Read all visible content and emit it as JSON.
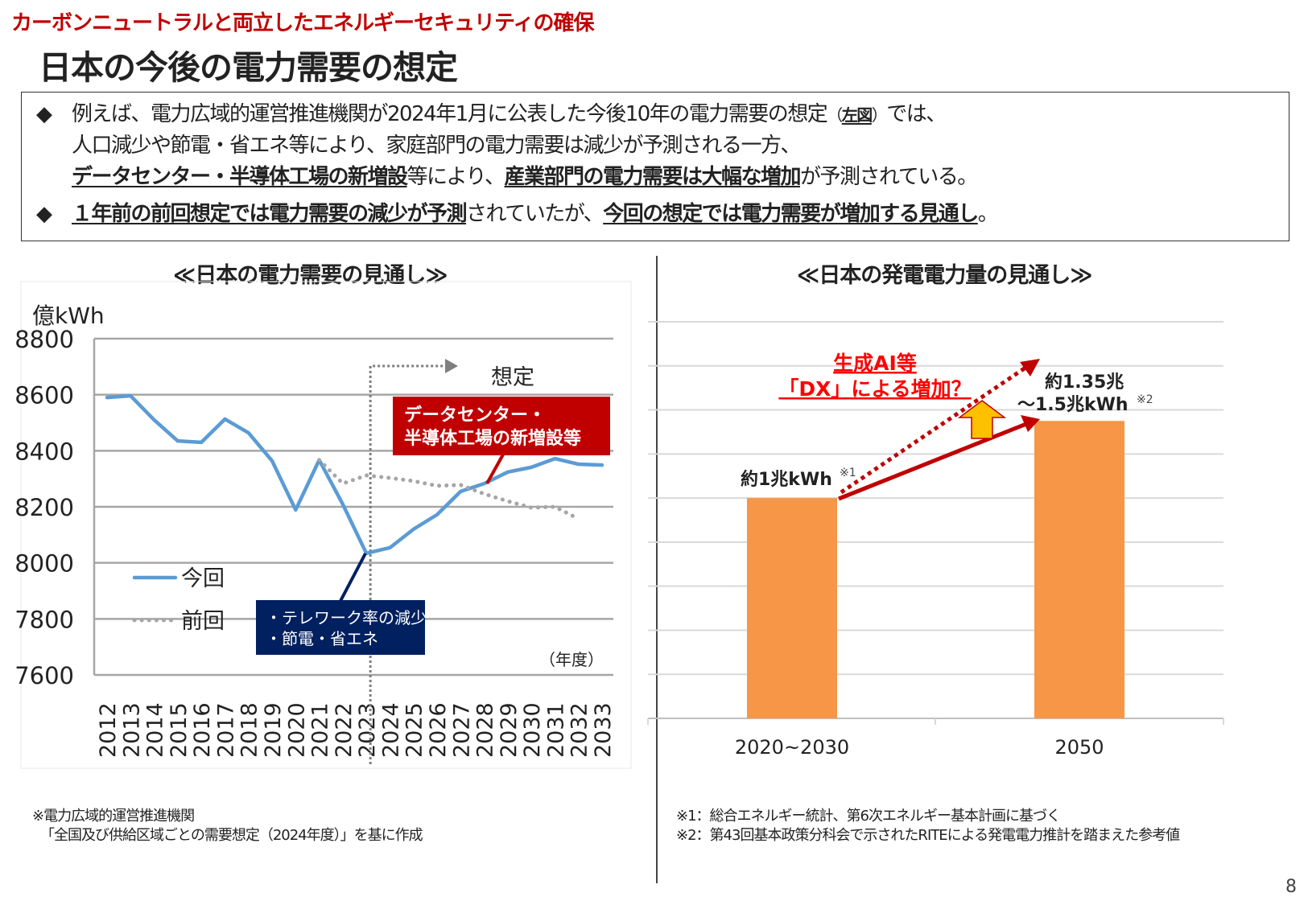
{
  "header": {
    "subtitle": "カーボンニュートラルと両立したエネルギーセキュリティの確保",
    "title": "日本の今後の電力需要の想定"
  },
  "summary": {
    "b1_l1": "例えば、電力広域的運営推進機関が2024年1月に公表した今後10年の電力需要の想定",
    "b1_l1_paren_open": "（",
    "b1_l1_ref": "左図",
    "b1_l1_paren_close": "）",
    "b1_l1_end": "では、",
    "b1_l2": "人口減少や節電・省エネ等により、家庭部門の電力需要は減少が予測される一方、",
    "b1_l3_a": "データセンター・半導体工場の新増設",
    "b1_l3_b": "等により、",
    "b1_l3_c": "産業部門の電力需要は大幅な増加",
    "b1_l3_d": "が予測されている。",
    "b2_a": "１年前の前回想定では電力需要の減少が予測",
    "b2_b": "されていたが、",
    "b2_c": "今回の想定では電力需要が増加する見通し",
    "b2_d": "。",
    "bullet": "◆"
  },
  "left_panel": {
    "title": "≪日本の電力需要の見通し≫",
    "note_l1": "※電力広域的運営推進機関",
    "note_l2": "「全国及び供給区域ごとの需要想定（2024年度）」を基に作成"
  },
  "right_panel": {
    "title": "≪日本の発電電力量の見通し≫",
    "note_l1": "※1：総合エネルギー統計、第6次エネルギー基本計画に基づく",
    "note_l2": "※2：第43回基本政策分科会で示されたRITEによる発電電力推計を踏まえた参考値"
  },
  "page_number": "8",
  "chart_data": [
    {
      "type": "line",
      "ylabel": "億kWh",
      "xlabel": "（年度）",
      "ylim": [
        7600,
        8800
      ],
      "yticks": [
        7600,
        7800,
        8000,
        8200,
        8400,
        8600,
        8800
      ],
      "grid": true,
      "x": [
        2012,
        2013,
        2014,
        2015,
        2016,
        2017,
        2018,
        2019,
        2020,
        2021,
        2022,
        2023,
        2024,
        2025,
        2026,
        2027,
        2028,
        2029,
        2030,
        2031,
        2032,
        2033
      ],
      "series": [
        {
          "name": "今回",
          "color": "#5b9bd5",
          "style": "solid",
          "x": [
            2012,
            2013,
            2014,
            2015,
            2016,
            2017,
            2018,
            2019,
            2020,
            2021,
            2022,
            2023,
            2024,
            2025,
            2026,
            2027,
            2028,
            2029,
            2030,
            2031,
            2032,
            2033
          ],
          "values": [
            8590,
            8596,
            8510,
            8435,
            8430,
            8513,
            8464,
            8364,
            8189,
            8367,
            8209,
            8034,
            8054,
            8120,
            8172,
            8255,
            8283,
            8324,
            8341,
            8372,
            8352,
            8349
          ]
        },
        {
          "name": "前回",
          "color": "#a6a6a6",
          "style": "dotted",
          "x": [
            2021,
            2022,
            2023,
            2024,
            2025,
            2026,
            2027,
            2028,
            2029,
            2030,
            2031,
            2032
          ],
          "values": [
            8367,
            8283,
            8312,
            8303,
            8292,
            8275,
            8278,
            8246,
            8220,
            8197,
            8200,
            8157
          ]
        }
      ],
      "legend": "bottom-left",
      "annotations": {
        "forecast": "想定",
        "forecast_start": 2023,
        "dc_callout": [
          "データセンター・",
          "半導体工場の新増設等"
        ],
        "telework_callout": [
          "・テレワーク率の減少",
          "・節電・省エネ"
        ]
      },
      "colors": {
        "dc_callout": "#c00000",
        "telework_callout": "#002060"
      }
    },
    {
      "type": "bar",
      "categories": [
        "2020~2030",
        "2050"
      ],
      "values": [
        1.0,
        1.35
      ],
      "ylim": [
        0,
        1.8
      ],
      "grid": true,
      "bar_color": "#f79646",
      "data_labels": [
        {
          "text": "約1兆kWh",
          "sup": "※1"
        },
        {
          "text": "約1.35兆",
          "text2": "～1.5兆kWh",
          "sup": "※2"
        }
      ],
      "annotation": {
        "line1": "生成AI等",
        "line2": "「DX」による増加？",
        "color": "#ff0000"
      },
      "arrow_color": "#c00000",
      "up_arrow_color": "#ffc000"
    }
  ]
}
